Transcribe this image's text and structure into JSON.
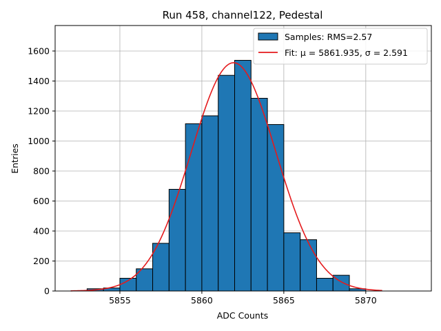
{
  "chart_data": {
    "type": "bar",
    "title": "Run 458, channel122, Pedestal",
    "xlabel": "ADC Counts",
    "ylabel": "Entries",
    "xlim": [
      5851.05,
      5874
    ],
    "ylim": [
      0,
      1770
    ],
    "xticks": [
      5855,
      5860,
      5865,
      5870
    ],
    "yticks": [
      0,
      200,
      400,
      600,
      800,
      1000,
      1200,
      1400,
      1600
    ],
    "grid": true,
    "legend_position": "top-right",
    "colors": {
      "bar_fill": "#1f77b4",
      "bar_edge": "#000000",
      "fit_line": "#e41a1c",
      "grid": "#b0b0b0"
    },
    "legend": [
      {
        "kind": "bar",
        "label": "Samples: RMS=2.57"
      },
      {
        "kind": "line",
        "label": "Fit: μ = 5861.935, σ = 2.591"
      }
    ],
    "bins": [
      {
        "x0": 5853.0,
        "x1": 5854.0,
        "value": 15
      },
      {
        "x0": 5854.0,
        "x1": 5855.0,
        "value": 20
      },
      {
        "x0": 5855.0,
        "x1": 5856.0,
        "value": 85
      },
      {
        "x0": 5856.0,
        "x1": 5857.0,
        "value": 148
      },
      {
        "x0": 5857.0,
        "x1": 5858.0,
        "value": 318
      },
      {
        "x0": 5858.0,
        "x1": 5859.0,
        "value": 678
      },
      {
        "x0": 5859.0,
        "x1": 5860.0,
        "value": 1115
      },
      {
        "x0": 5860.0,
        "x1": 5861.0,
        "value": 1168
      },
      {
        "x0": 5861.0,
        "x1": 5862.0,
        "value": 1438
      },
      {
        "x0": 5862.0,
        "x1": 5863.0,
        "value": 1538
      },
      {
        "x0": 5863.0,
        "x1": 5864.0,
        "value": 1285
      },
      {
        "x0": 5864.0,
        "x1": 5865.0,
        "value": 1110
      },
      {
        "x0": 5865.0,
        "x1": 5866.0,
        "value": 388
      },
      {
        "x0": 5866.0,
        "x1": 5867.0,
        "value": 342
      },
      {
        "x0": 5867.0,
        "x1": 5868.0,
        "value": 85
      },
      {
        "x0": 5868.0,
        "x1": 5869.0,
        "value": 105
      },
      {
        "x0": 5869.0,
        "x1": 5870.0,
        "value": 15
      }
    ],
    "fit": {
      "mu": 5861.935,
      "sigma": 2.591,
      "amplitude": 1522,
      "x_range": [
        5852.0,
        5871.0
      ]
    }
  }
}
